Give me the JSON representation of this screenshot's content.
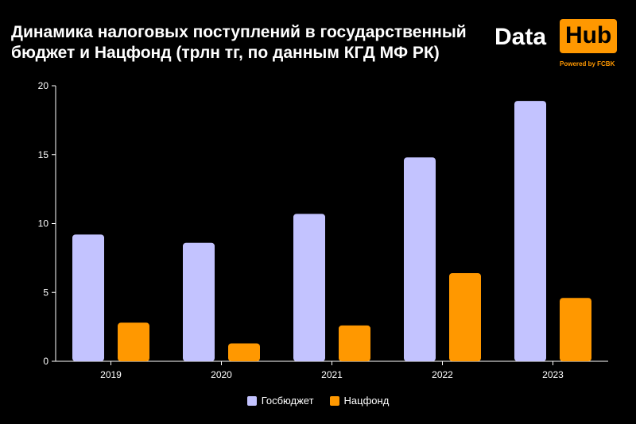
{
  "title": "Динамика налоговых поступлений в государственный бюджет и Нацфонд (трлн тг, по данным КГД МФ РК)",
  "logo": {
    "data": "Data",
    "hub": "Hub",
    "tagline": "Powered by FCBK"
  },
  "colors": {
    "background": "#000000",
    "gosbudget": "#c3c3ff",
    "natsfond": "#ff9800",
    "axis": "#ffffff",
    "text": "#ffffff"
  },
  "chart_data": {
    "type": "bar",
    "title": "Динамика налоговых поступлений в государственный бюджет и Нацфонд (трлн тг, по данным КГД МФ РК)",
    "categories": [
      "2019",
      "2020",
      "2021",
      "2022",
      "2023"
    ],
    "series": [
      {
        "name": "Госбюджет",
        "color": "#c3c3ff",
        "values": [
          9.2,
          8.6,
          10.7,
          14.8,
          18.9
        ]
      },
      {
        "name": "Нацфонд",
        "color": "#ff9800",
        "values": [
          2.8,
          1.3,
          2.6,
          6.4,
          4.6
        ]
      }
    ],
    "ylim": [
      0,
      20
    ],
    "yticks": [
      0,
      5,
      10,
      15,
      20
    ],
    "grid": false,
    "legend_position": "bottom-center"
  }
}
